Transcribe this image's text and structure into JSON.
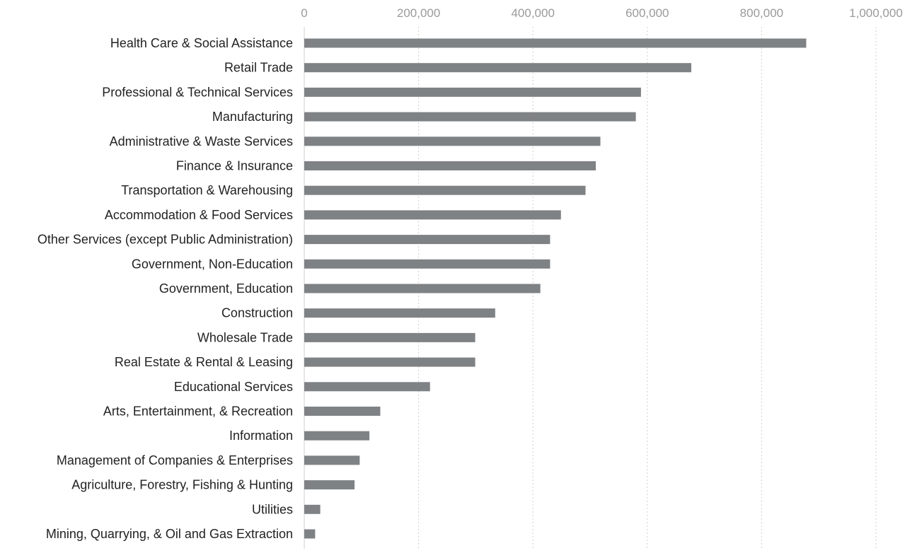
{
  "chart_data": {
    "type": "bar",
    "orientation": "horizontal",
    "title": "",
    "xlabel": "",
    "ylabel": "",
    "xlim": [
      0,
      1000000
    ],
    "x_ticks": [
      0,
      200000,
      400000,
      600000,
      800000,
      1000000
    ],
    "x_tick_labels": [
      "0",
      "200,000",
      "400,000",
      "600,000",
      "800,000",
      "1,000,000"
    ],
    "tick_position": "top",
    "grid": "vertical dashed",
    "legend": "none",
    "bar_color": "#7f8285",
    "categories": [
      "Health Care & Social Assistance",
      "Retail Trade",
      "Professional & Technical Services",
      "Manufacturing",
      "Administrative & Waste Services",
      "Finance & Insurance",
      "Transportation & Warehousing",
      "Accommodation & Food Services",
      "Other Services (except Public Administration)",
      "Government, Non-Education",
      "Government, Education",
      "Construction",
      "Wholesale Trade",
      "Real Estate & Rental & Leasing",
      "Educational Services",
      "Arts, Entertainment, & Recreation",
      "Information",
      "Management of Companies & Enterprises",
      "Agriculture, Forestry, Fishing & Hunting",
      "Utilities",
      "Mining, Quarrying, & Oil and Gas Extraction"
    ],
    "values": [
      878000,
      677000,
      589000,
      580000,
      518000,
      510000,
      492000,
      449000,
      430000,
      430000,
      413000,
      334000,
      299000,
      299000,
      220000,
      133000,
      114000,
      97000,
      88000,
      28000,
      19000
    ]
  }
}
